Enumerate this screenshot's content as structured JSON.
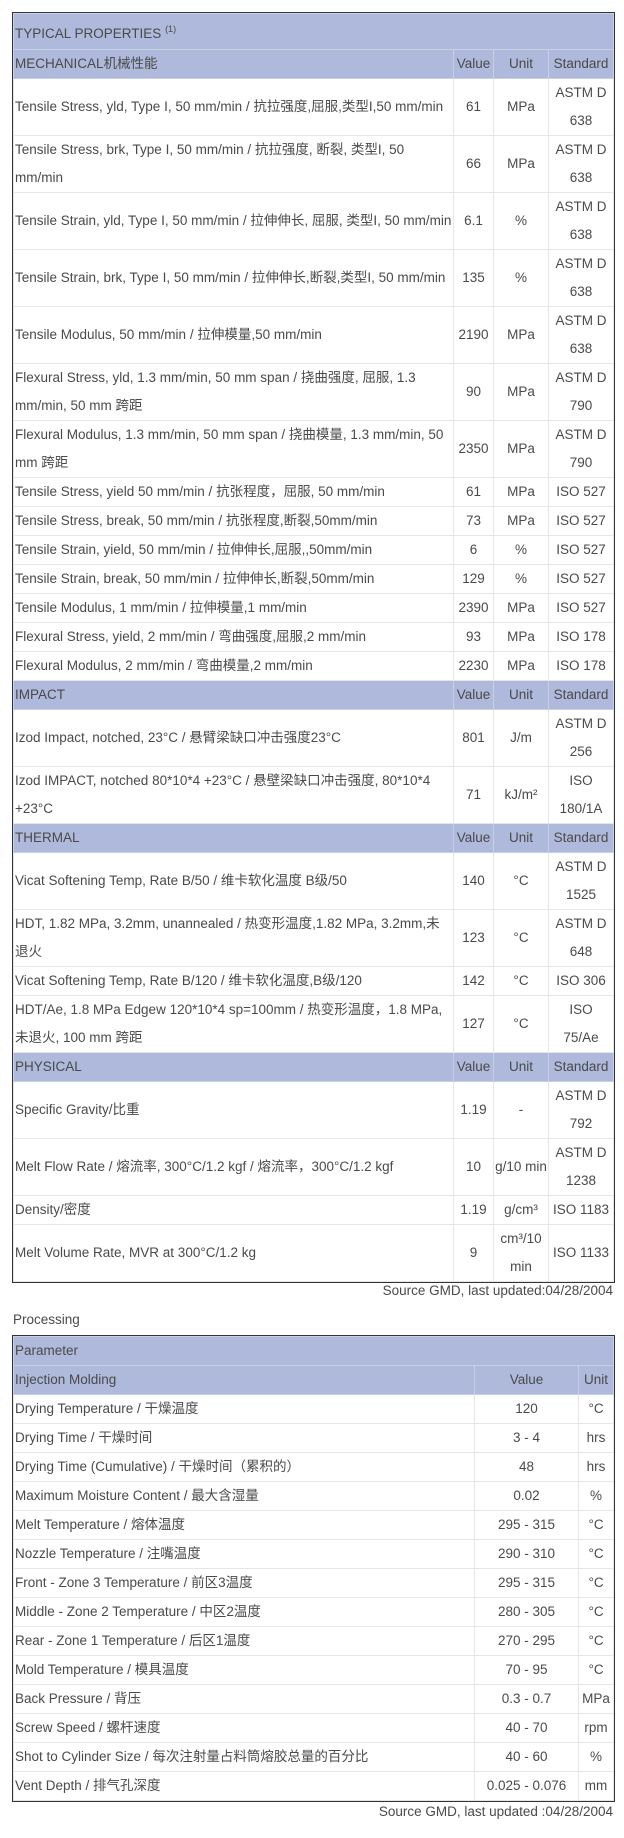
{
  "properties": {
    "title": "TYPICAL PROPERTIES",
    "title_note": "(1)",
    "columns": {
      "value": "Value",
      "unit": "Unit",
      "standard": "Standard"
    },
    "sections": [
      {
        "name": "MECHANICAL机械性能",
        "rows": [
          [
            "Tensile Stress, yld, Type I, 50 mm/min / 抗拉强度,屈服,类型I,50 mm/min",
            "61",
            "MPa",
            "ASTM D 638"
          ],
          [
            "Tensile Stress, brk, Type I, 50 mm/min / 抗拉强度, 断裂, 类型I, 50 mm/min",
            "66",
            "MPa",
            "ASTM D 638"
          ],
          [
            "Tensile Strain, yld, Type I, 50 mm/min / 拉伸伸长, 屈服, 类型I, 50 mm/min",
            "6.1",
            "%",
            "ASTM D 638"
          ],
          [
            "Tensile Strain, brk, Type I, 50 mm/min / 拉伸伸长,断裂,类型I, 50 mm/min",
            "135",
            "%",
            "ASTM D 638"
          ],
          [
            "Tensile Modulus, 50 mm/min / 拉伸模量,50 mm/min",
            "2190",
            "MPa",
            "ASTM D 638"
          ],
          [
            "Flexural Stress, yld, 1.3 mm/min, 50 mm span / 挠曲强度, 屈服, 1.3 mm/min, 50 mm 跨距",
            "90",
            "MPa",
            "ASTM D 790"
          ],
          [
            "Flexural Modulus, 1.3 mm/min, 50 mm span / 挠曲模量, 1.3 mm/min, 50 mm 跨距",
            "2350",
            "MPa",
            "ASTM D 790"
          ],
          [
            "Tensile Stress, yield 50 mm/min / 抗张程度，屈服, 50 mm/min",
            "61",
            "MPa",
            "ISO 527"
          ],
          [
            "Tensile Stress, break, 50 mm/min / 抗张程度,断裂,50mm/min",
            "73",
            "MPa",
            "ISO 527"
          ],
          [
            "Tensile Strain, yield, 50 mm/min / 拉伸伸长,屈服,,50mm/min",
            "6",
            "%",
            "ISO 527"
          ],
          [
            "Tensile Strain, break, 50 mm/min / 拉伸伸长,断裂,50mm/min",
            "129",
            "%",
            "ISO 527"
          ],
          [
            "Tensile Modulus, 1 mm/min / 拉伸模量,1 mm/min",
            "2390",
            "MPa",
            "ISO 527"
          ],
          [
            "Flexural Stress, yield, 2 mm/min / 弯曲强度,屈服,2 mm/min",
            "93",
            "MPa",
            "ISO 178"
          ],
          [
            "Flexural Modulus, 2 mm/min / 弯曲模量,2 mm/min",
            "2230",
            "MPa",
            "ISO 178"
          ]
        ]
      },
      {
        "name": "IMPACT",
        "rows": [
          [
            "Izod Impact, notched, 23°C / 悬臂梁缺口冲击强度23°C",
            "801",
            "J/m",
            "ASTM D 256"
          ],
          [
            "Izod IMPACT, notched 80*10*4 +23°C / 悬壁梁缺口冲击强度, 80*10*4 +23°C",
            "71",
            "kJ/m²",
            "ISO 180/1A"
          ]
        ]
      },
      {
        "name": "THERMAL",
        "rows": [
          [
            "Vicat Softening Temp, Rate B/50 / 维卡软化温度 B级/50",
            "140",
            "°C",
            "ASTM D 1525"
          ],
          [
            "HDT, 1.82 MPa, 3.2mm, unannealed / 热变形温度,1.82 MPa, 3.2mm,未退火",
            "123",
            "°C",
            "ASTM D 648"
          ],
          [
            "Vicat Softening Temp, Rate B/120 / 维卡软化温度,B级/120",
            "142",
            "°C",
            "ISO 306"
          ],
          [
            "HDT/Ae, 1.8 MPa Edgew 120*10*4 sp=100mm / 热变形温度，1.8 MPa, 未退火, 100 mm 跨距",
            "127",
            "°C",
            "ISO 75/Ae"
          ]
        ]
      },
      {
        "name": "PHYSICAL",
        "rows": [
          [
            "Specific Gravity/比重",
            "1.19",
            "-",
            "ASTM D 792"
          ],
          [
            "Melt Flow Rate / 熔流率, 300°C/1.2 kgf / 熔流率，300°C/1.2 kgf",
            "10",
            "g/10 min",
            "ASTM D 1238"
          ],
          [
            "Density/密度",
            "1.19",
            "g/cm³",
            "ISO 1183"
          ],
          [
            "Melt Volume Rate, MVR at 300°C/1.2 kg",
            "9",
            "cm³/10 min",
            "ISO 1133"
          ]
        ]
      }
    ],
    "source": "Source GMD, last updated:04/28/2004"
  },
  "processing": {
    "label": "Processing",
    "title": "Parameter",
    "section": "Injection Molding",
    "columns": {
      "value": "Value",
      "unit": "Unit"
    },
    "rows": [
      [
        "Drying Temperature / 干燥温度",
        "120",
        "°C"
      ],
      [
        "Drying Time / 干燥时间",
        "3 - 4",
        "hrs"
      ],
      [
        "Drying Time (Cumulative) / 干燥时间（累积的）",
        "48",
        "hrs"
      ],
      [
        "Maximum Moisture Content / 最大含湿量",
        "0.02",
        "%"
      ],
      [
        "Melt Temperature / 熔体温度",
        "295 - 315",
        "°C"
      ],
      [
        "Nozzle Temperature / 注嘴温度",
        "290 - 310",
        "°C"
      ],
      [
        "Front - Zone 3 Temperature / 前区3温度",
        "295 - 315",
        "°C"
      ],
      [
        "Middle - Zone 2 Temperature / 中区2温度",
        "280 - 305",
        "°C"
      ],
      [
        "Rear - Zone 1 Temperature / 后区1温度",
        "270 - 295",
        "°C"
      ],
      [
        "Mold Temperature / 模具温度",
        "70 - 95",
        "°C"
      ],
      [
        "Back Pressure / 背压",
        "0.3 - 0.7",
        "MPa"
      ],
      [
        "Screw Speed / 螺杆速度",
        "40 - 70",
        "rpm"
      ],
      [
        "Shot to Cylinder Size / 每次注射量占料筒熔胶总量的百分比",
        "40 - 60",
        "%"
      ],
      [
        "Vent Depth / 排气孔深度",
        "0.025 - 0.076",
        "mm"
      ]
    ],
    "source": "Source GMD, last updated :04/28/2004"
  },
  "colors": {
    "header_bg": "#aeb9db",
    "text": "#4a4a4a",
    "outer_border": "#333333"
  }
}
